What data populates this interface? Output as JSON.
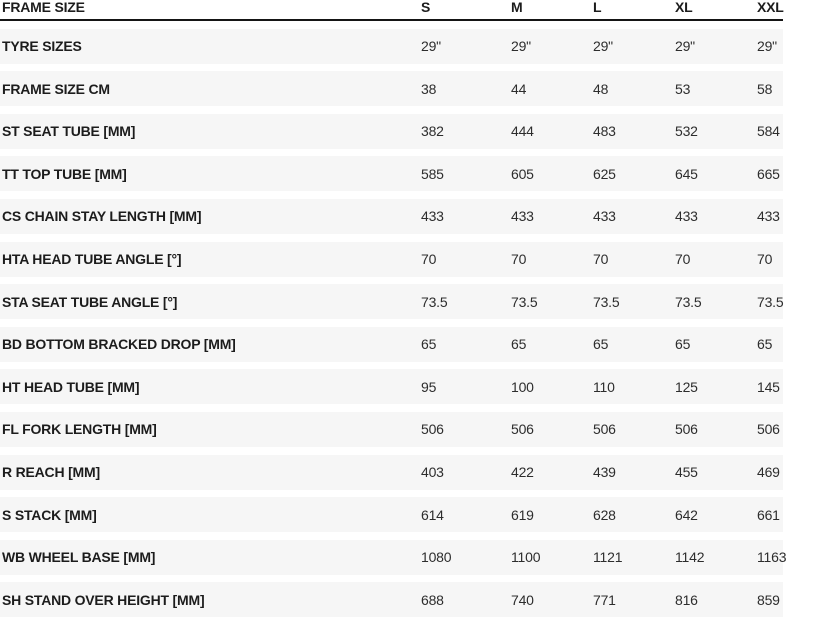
{
  "chart_data": {
    "type": "table",
    "header": {
      "label": "FRAME SIZE",
      "sizes": [
        "S",
        "M",
        "L",
        "XL",
        "XXL"
      ]
    },
    "rows": [
      {
        "label": "TYRE SIZES",
        "values": [
          "29\"",
          "29\"",
          "29\"",
          "29\"",
          "29\""
        ]
      },
      {
        "label": "FRAME SIZE CM",
        "values": [
          38,
          44,
          48,
          53,
          58
        ]
      },
      {
        "label": "ST SEAT TUBE [MM]",
        "values": [
          382,
          444,
          483,
          532,
          584
        ]
      },
      {
        "label": "TT TOP TUBE [MM]",
        "values": [
          585,
          605,
          625,
          645,
          665
        ]
      },
      {
        "label": "CS CHAIN STAY LENGTH [MM]",
        "values": [
          433,
          433,
          433,
          433,
          433
        ]
      },
      {
        "label": "HTA HEAD TUBE ANGLE [°]",
        "values": [
          70,
          70,
          70,
          70,
          70
        ]
      },
      {
        "label": "STA SEAT TUBE ANGLE [°]",
        "values": [
          73.5,
          73.5,
          73.5,
          73.5,
          73.5
        ]
      },
      {
        "label": "BD BOTTOM BRACKED DROP [MM]",
        "values": [
          65,
          65,
          65,
          65,
          65
        ]
      },
      {
        "label": "HT HEAD TUBE [MM]",
        "values": [
          95,
          100,
          110,
          125,
          145
        ]
      },
      {
        "label": "FL FORK LENGTH [MM]",
        "values": [
          506,
          506,
          506,
          506,
          506
        ]
      },
      {
        "label": "R REACH [MM]",
        "values": [
          403,
          422,
          439,
          455,
          469
        ]
      },
      {
        "label": "S STACK [MM]",
        "values": [
          614,
          619,
          628,
          642,
          661
        ]
      },
      {
        "label": "WB WHEEL BASE [MM]",
        "values": [
          1080,
          1100,
          1121,
          1142,
          1163
        ]
      },
      {
        "label": "SH STAND OVER HEIGHT [MM]",
        "values": [
          688,
          740,
          771,
          816,
          859
        ]
      }
    ]
  },
  "colors": {
    "page_background": "#ffffff",
    "row_background": "#f6f6f6",
    "header_border": "#151515",
    "label_text": "#1c1c1c",
    "value_text": "#2d2d2d"
  }
}
